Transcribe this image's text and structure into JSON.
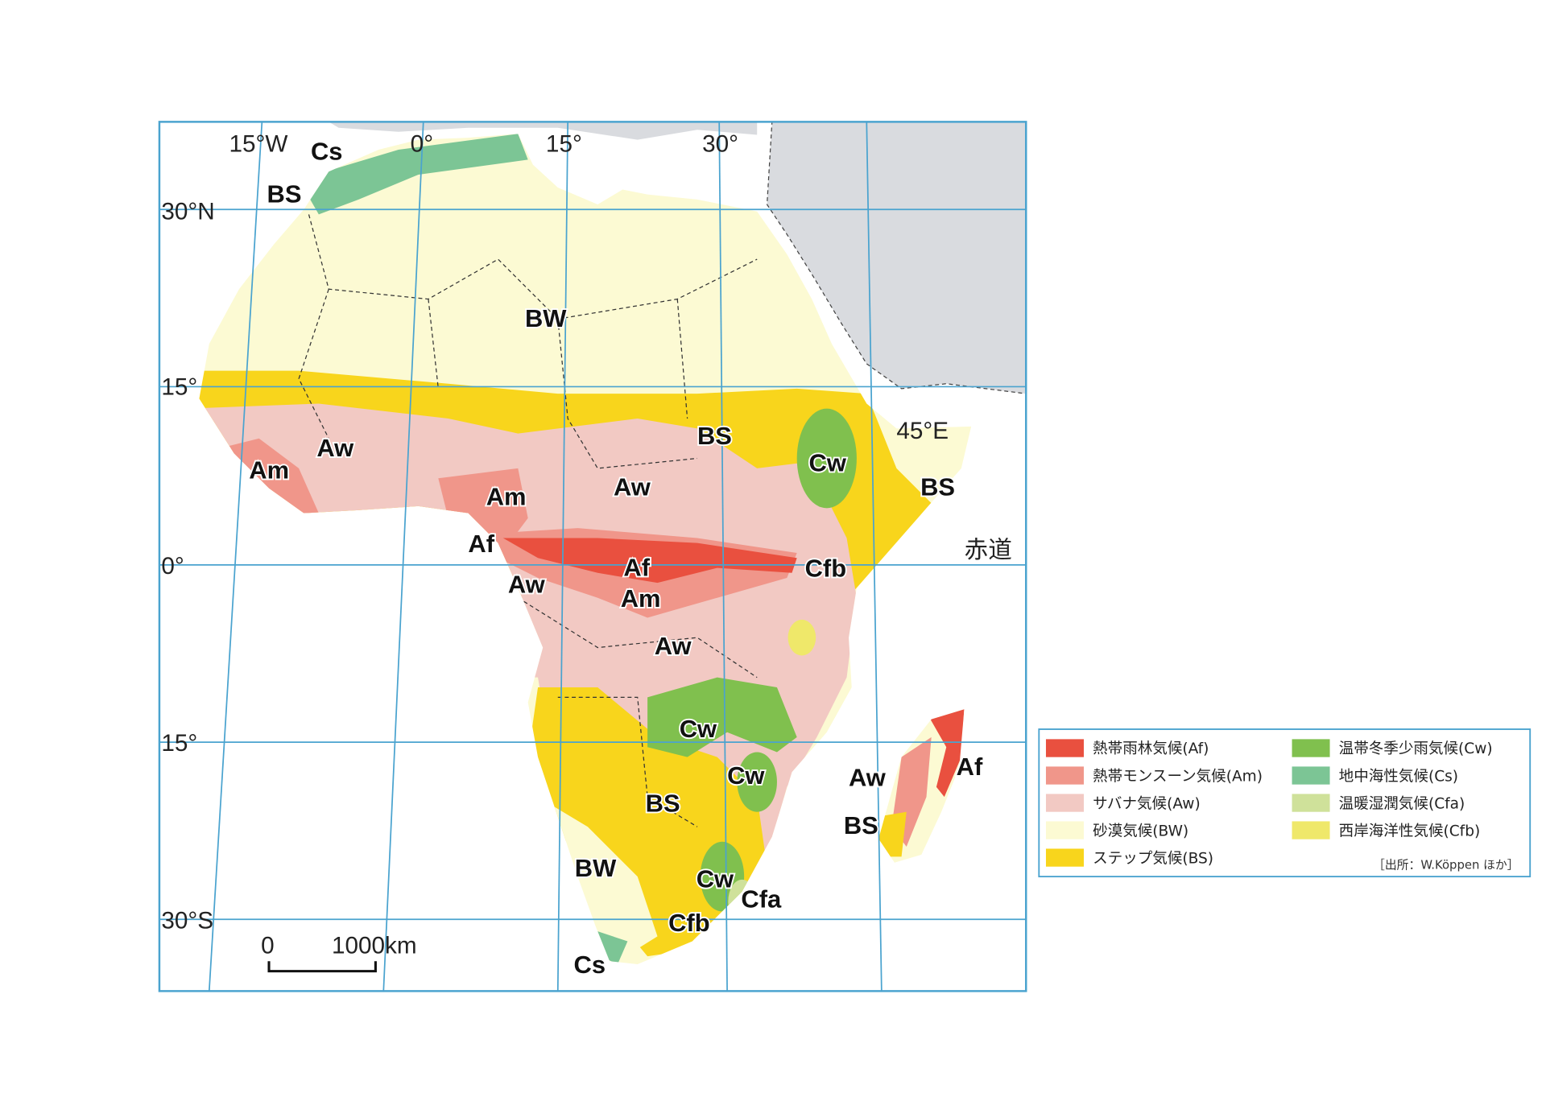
{
  "map": {
    "coordinate_labels": [
      "15°W",
      "0°",
      "15°",
      "30°",
      "30°N",
      "15°",
      "45°E",
      "0°",
      "赤道",
      "15°",
      "30°S"
    ],
    "region_labels": [
      "Cs",
      "BS",
      "BW",
      "Aw",
      "Am",
      "BS",
      "Aw",
      "Cw",
      "BS",
      "Am",
      "Af",
      "Af",
      "Am",
      "Aw",
      "Cfb",
      "Aw",
      "Cw",
      "Cw",
      "BS",
      "BW",
      "Cw",
      "Cfa",
      "Cfb",
      "Cs",
      "Aw",
      "BS",
      "Af"
    ],
    "scale_bar": {
      "start": "0",
      "end": "1000km"
    }
  },
  "legend": {
    "items": [
      {
        "label": "熱帯雨林気候(Af)",
        "color": "#e9503f"
      },
      {
        "label": "熱帯モンスーン気候(Am)",
        "color": "#f0968a"
      },
      {
        "label": "サバナ気候(Aw)",
        "color": "#f2c9c3"
      },
      {
        "label": "砂漠気候(BW)",
        "color": "#fcfad3"
      },
      {
        "label": "ステップ気候(BS)",
        "color": "#f8d51c"
      },
      {
        "label": "温帯冬季少雨気候(Cw)",
        "color": "#80c04e"
      },
      {
        "label": "地中海性気候(Cs)",
        "color": "#7cc595"
      },
      {
        "label": "温暖湿潤気候(Cfa)",
        "color": "#cfe19a"
      },
      {
        "label": "西岸海洋性気候(Cfb)",
        "color": "#efe86a"
      }
    ],
    "source": "［出所：W.Köppen ほか］"
  }
}
